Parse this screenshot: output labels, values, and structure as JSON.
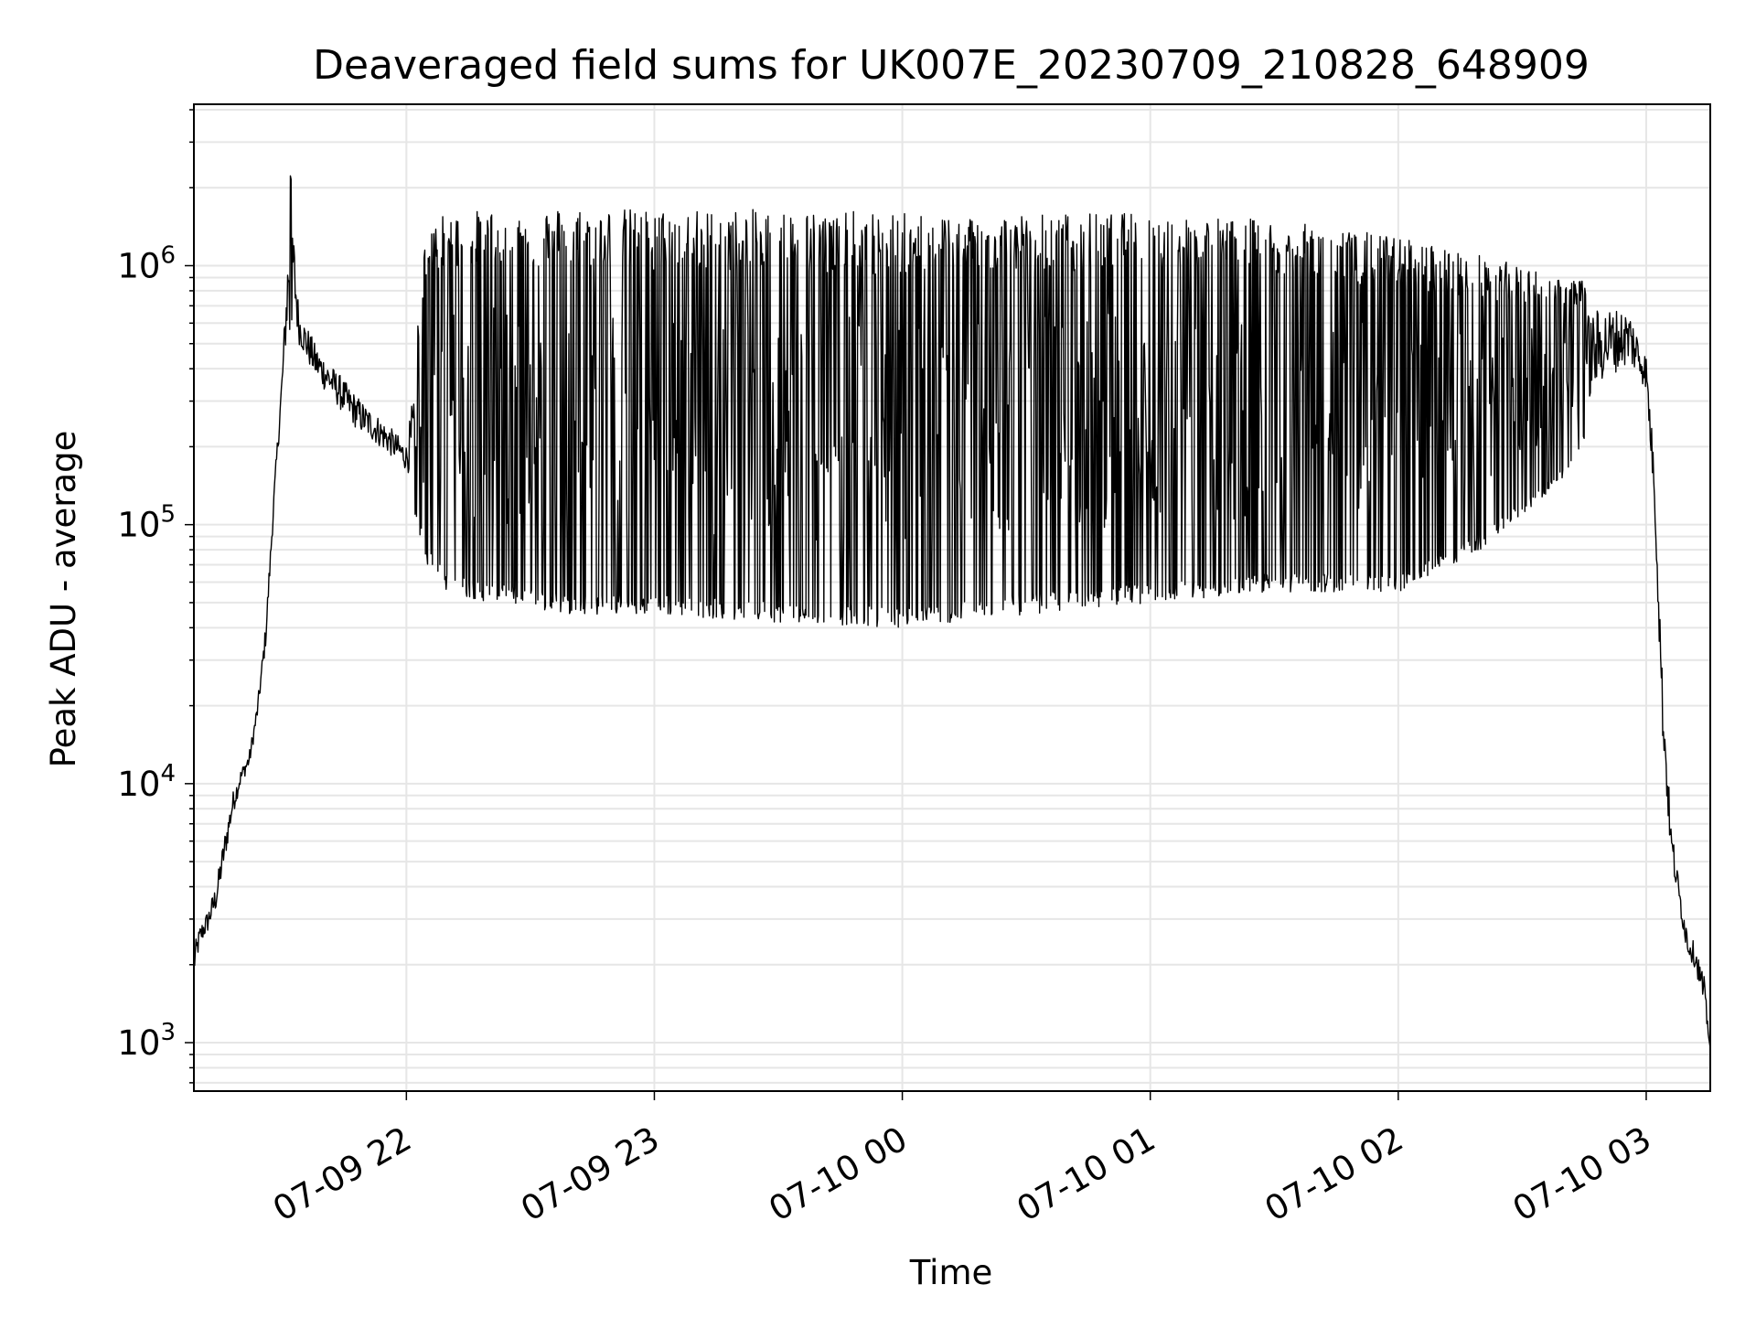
{
  "chart_data": {
    "type": "line",
    "title": "Deaveraged field sums for UK007E_20230709_210828_648909",
    "xlabel": "Time",
    "ylabel": "Peak ADU - average",
    "yscale": "log",
    "ylim": [
      650,
      4200000
    ],
    "xlim": [
      "2023-07-09 21:08:35",
      "2023-07-10 03:15:30"
    ],
    "x_ticks": [
      {
        "x": "2023-07-09 22:00",
        "label": "07-09 22"
      },
      {
        "x": "2023-07-09 23:00",
        "label": "07-09 23"
      },
      {
        "x": "2023-07-10 00:00",
        "label": "07-10 00"
      },
      {
        "x": "2023-07-10 01:00",
        "label": "07-10 01"
      },
      {
        "x": "2023-07-10 02:00",
        "label": "07-10 02"
      },
      {
        "x": "2023-07-10 03:00",
        "label": "07-10 03"
      }
    ],
    "y_ticks": [
      {
        "value": 1000,
        "base": "10",
        "exp": "3"
      },
      {
        "value": 10000,
        "base": "10",
        "exp": "4"
      },
      {
        "value": 100000,
        "base": "10",
        "exp": "5"
      },
      {
        "value": 1000000,
        "base": "10",
        "exp": "6"
      }
    ],
    "grid": true,
    "line_color": "#000000",
    "grid_color": "#e6e6e6",
    "series": [
      {
        "x": [
          "2023-07-09 21:08:35",
          "2023-07-09 21:10",
          "2023-07-09 21:12",
          "2023-07-09 21:14",
          "2023-07-09 21:16",
          "2023-07-09 21:18",
          "2023-07-09 21:20",
          "2023-07-09 21:22",
          "2023-07-09 21:24",
          "2023-07-09 21:26",
          "2023-07-09 21:28",
          "2023-07-09 21:30",
          "2023-07-09 21:32",
          "2023-07-09 21:34",
          "2023-07-09 21:36",
          "2023-07-09 21:38",
          "2023-07-09 21:40",
          "2023-07-09 21:42",
          "2023-07-09 21:44",
          "2023-07-09 21:46",
          "2023-07-09 21:48",
          "2023-07-09 21:50",
          "2023-07-09 21:52",
          "2023-07-09 21:54",
          "2023-07-09 21:56",
          "2023-07-09 21:58",
          "2023-07-09 22:00",
          "2023-07-09 22:05",
          "2023-07-09 22:10",
          "2023-07-09 22:20",
          "2023-07-09 22:40",
          "2023-07-09 23:00",
          "2023-07-09 23:30",
          "2023-07-10 00:00",
          "2023-07-10 00:30",
          "2023-07-10 01:00",
          "2023-07-10 01:30",
          "2023-07-10 02:00",
          "2023-07-10 02:20",
          "2023-07-10 02:40",
          "2023-07-10 02:50",
          "2023-07-10 02:56",
          "2023-07-10 03:00",
          "2023-07-10 03:02",
          "2023-07-10 03:04",
          "2023-07-10 03:06",
          "2023-07-10 03:08",
          "2023-07-10 03:10",
          "2023-07-10 03:12",
          "2023-07-10 03:14",
          "2023-07-10 03:15:30"
        ],
        "upper": [
          2600,
          3000,
          3500,
          4500,
          7000,
          10000,
          12000,
          14000,
          22000,
          45000,
          150000,
          450000,
          2800000,
          750000,
          650000,
          550000,
          500000,
          450000,
          420000,
          380000,
          350000,
          320000,
          300000,
          280000,
          260000,
          240000,
          220000,
          1500000,
          1600000,
          1650000,
          1700000,
          1650000,
          1650000,
          1600000,
          1600000,
          1600000,
          1500000,
          1300000,
          1100000,
          900000,
          850000,
          800000,
          500000,
          200000,
          30000,
          8000,
          4500,
          3000,
          2500,
          2000,
          950
        ],
        "lower": [
          1600,
          2200,
          2500,
          3000,
          4500,
          7000,
          9500,
          11000,
          17000,
          32000,
          110000,
          300000,
          600000,
          450000,
          380000,
          330000,
          300000,
          280000,
          250000,
          230000,
          210000,
          200000,
          190000,
          180000,
          170000,
          160000,
          150000,
          70000,
          55000,
          50000,
          45000,
          45000,
          42000,
          40000,
          45000,
          50000,
          55000,
          55000,
          80000,
          150000,
          300000,
          350000,
          300000,
          100000,
          12000,
          4500,
          3000,
          2000,
          1800,
          1200,
          950
        ]
      }
    ],
    "annotations": []
  }
}
